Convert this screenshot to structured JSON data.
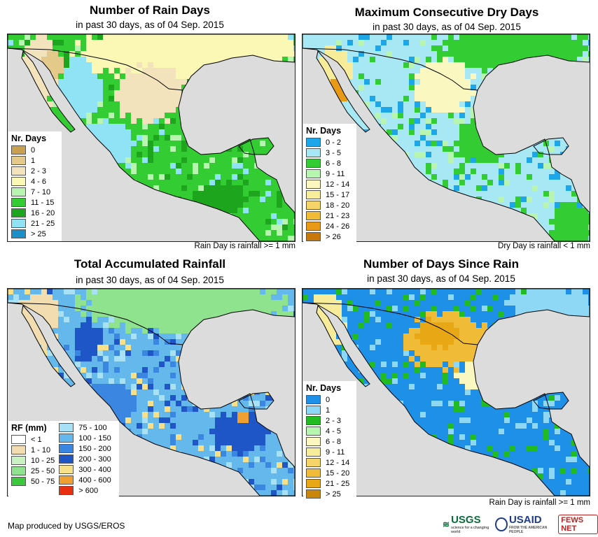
{
  "panels": [
    {
      "title": "Number of Rain Days",
      "subtitle": "in past 30 days, as of 04 Sep. 2015",
      "note": "Rain Day is rainfall >= 1 mm",
      "legend": {
        "title": "Nr. Days",
        "items": [
          {
            "label": "0",
            "color": "#c8a050"
          },
          {
            "label": "1",
            "color": "#e3c98a"
          },
          {
            "label": "2 - 3",
            "color": "#f3e3bd"
          },
          {
            "label": "4 - 6",
            "color": "#fbf7b5"
          },
          {
            "label": "7 - 10",
            "color": "#b8f5b0"
          },
          {
            "label": "11 - 15",
            "color": "#33cc33"
          },
          {
            "label": "16 - 20",
            "color": "#1ea51e"
          },
          {
            "label": "21 - 25",
            "color": "#8fe3f5"
          },
          {
            "label": "> 25",
            "color": "#1a8fc8"
          }
        ]
      }
    },
    {
      "title": "Maximum Consecutive Dry Days",
      "subtitle": "in past 30 days, as of 04 Sep. 2015",
      "note": "Dry Day is rainfall < 1 mm",
      "legend": {
        "title": "Nr. Days",
        "items": [
          {
            "label": "0 - 2",
            "color": "#1ea7e8"
          },
          {
            "label": "3 - 5",
            "color": "#a8e8f5"
          },
          {
            "label": "6 - 8",
            "color": "#33cc33"
          },
          {
            "label": "9 - 11",
            "color": "#b8f5b0"
          },
          {
            "label": "12 - 14",
            "color": "#fbf7c0"
          },
          {
            "label": "15 - 17",
            "color": "#f7ec9a"
          },
          {
            "label": "18 - 20",
            "color": "#f5d56a"
          },
          {
            "label": "21 - 23",
            "color": "#f0bb36"
          },
          {
            "label": "24 - 26",
            "color": "#e89a16"
          },
          {
            "label": "> 26",
            "color": "#c8780a"
          }
        ]
      }
    },
    {
      "title": "Total Accumulated Rainfall",
      "subtitle": "in past 30 days, as of 04 Sep. 2015",
      "note": "",
      "legend": {
        "title": "RF (mm)",
        "items": [
          {
            "label": "< 1",
            "color": "#ffffff"
          },
          {
            "label": "1 - 10",
            "color": "#f1ddb0"
          },
          {
            "label": "10 - 25",
            "color": "#c9f2c2"
          },
          {
            "label": "25 - 50",
            "color": "#8fe38f"
          },
          {
            "label": "50 - 75",
            "color": "#3cc83c"
          },
          {
            "label": "75 - 100",
            "color": "#a8e0f5"
          },
          {
            "label": "100 - 150",
            "color": "#64b8ec"
          },
          {
            "label": "150 - 200",
            "color": "#3a86e0"
          },
          {
            "label": "200 - 300",
            "color": "#1e56c8"
          },
          {
            "label": "300 - 400",
            "color": "#f7e08a"
          },
          {
            "label": "400 - 600",
            "color": "#f0a030"
          },
          {
            "label": "> 600",
            "color": "#e83010"
          }
        ]
      }
    },
    {
      "title": "Number of Days Since Rain",
      "subtitle": "in past 30 days, as of 04 Sep. 2015",
      "note": "Rain Day is rainfall >= 1 mm",
      "legend": {
        "title": "Nr. Days",
        "items": [
          {
            "label": "0",
            "color": "#1e90e8"
          },
          {
            "label": "1",
            "color": "#8fd8f5"
          },
          {
            "label": "2 - 3",
            "color": "#22bb22"
          },
          {
            "label": "4 - 5",
            "color": "#b8f5b0"
          },
          {
            "label": "6 - 8",
            "color": "#fbf7c0"
          },
          {
            "label": "9 - 11",
            "color": "#f7ec9a"
          },
          {
            "label": "12 - 14",
            "color": "#f5d56a"
          },
          {
            "label": "15 - 20",
            "color": "#f0bb36"
          },
          {
            "label": "21 - 25",
            "color": "#e8a816"
          },
          {
            "label": "> 25",
            "color": "#c8860a"
          }
        ]
      }
    }
  ],
  "credit": "Map produced by USGS/EROS",
  "logos": {
    "usgs": "USGS",
    "usgs_tag": "science for a changing world",
    "usaid": "USAID",
    "usaid_tag": "FROM THE AMERICAN PEOPLE",
    "fews": "FEWS NET"
  },
  "colors": {
    "ocean": "#dcdcdc",
    "border": "#000000"
  }
}
